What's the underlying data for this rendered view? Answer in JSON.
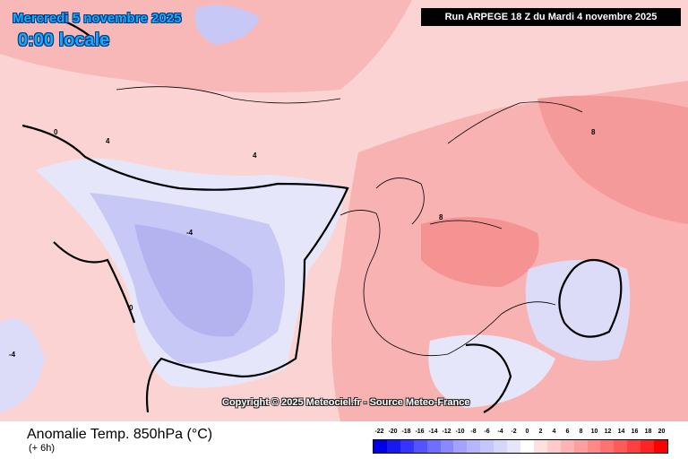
{
  "header": {
    "date_title": "Mercredi 5 novembre 2025",
    "time_title": "0:00 locale",
    "run_info": "Run ARPEGE 18 Z du Mardi 4 novembre 2025"
  },
  "watermark": "Copyright © 2025 Meteociel.fr - Source Meteo-France",
  "footer": {
    "variable_title": "Anomalie Temp. 850hPa (°C)",
    "variable_subtitle": "(+ 6h)"
  },
  "legend": {
    "ticks": [
      "-22",
      "-20",
      "-18",
      "-16",
      "-14",
      "-12",
      "-10",
      "-8",
      "-6",
      "-4",
      "-2",
      "0",
      "2",
      "4",
      "6",
      "8",
      "10",
      "12",
      "14",
      "16",
      "18",
      "20"
    ],
    "colors": [
      "#0000e6",
      "#1818f0",
      "#3535ff",
      "#5454ff",
      "#6f6fff",
      "#8989ff",
      "#a3a3ff",
      "#b6b6ff",
      "#c6c6ff",
      "#d6d6fb",
      "#e6e6fb",
      "#ffffff",
      "#ffe0e0",
      "#ffcaca",
      "#ffb4b4",
      "#ff9e9e",
      "#ff8888",
      "#ff7272",
      "#ff5a5a",
      "#ff4040",
      "#ff2424",
      "#ff0000"
    ]
  },
  "map": {
    "contour_labels": [
      "4",
      "8",
      "0",
      "-4",
      "4",
      "8",
      "0",
      "-4"
    ]
  }
}
